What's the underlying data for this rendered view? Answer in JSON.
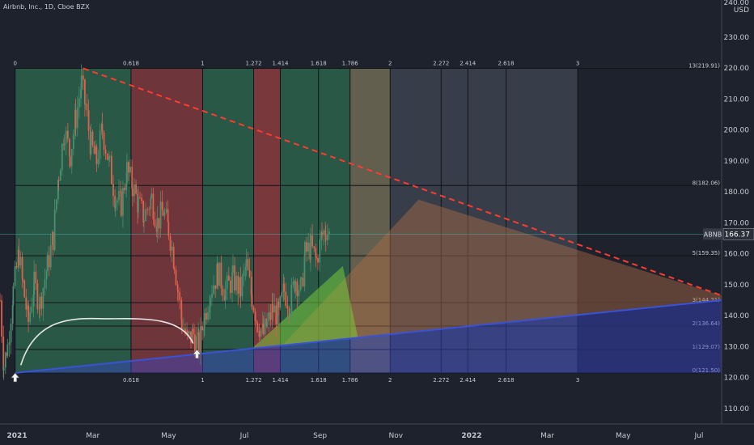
{
  "header": {
    "symbol_title": "Airbnb, Inc., 1D, Cboe BZX"
  },
  "price_axis": {
    "currency": "USD",
    "top_partial_label": "240.00"
  },
  "colors": {
    "background": "#1e222d",
    "grid": "#363a45",
    "up_candle": "#4a8f6f",
    "down_candle": "#e0604c",
    "fib_green": "#2d6b4f",
    "fib_red": "#8a3c3f",
    "fib_gray": "#4e5560",
    "trendline_red": "#ff3b30",
    "trendline_blue": "#3a52d6",
    "last_price_badge": "#363a45"
  },
  "last_price": {
    "ticker": "ABNB",
    "value": "166.37",
    "price": 166.37
  },
  "chart_data": {
    "type": "candlestick",
    "instrument": "Airbnb, Inc.",
    "interval": "1D",
    "exchange": "Cboe BZX",
    "ylim": [
      105,
      242
    ],
    "price_ticks": [
      "110.00",
      "120.00",
      "130.00",
      "140.00",
      "150.00",
      "160.00",
      "170.00",
      "180.00",
      "190.00",
      "200.00",
      "210.00",
      "220.00",
      "230.00"
    ],
    "price_tick_values": [
      110,
      120,
      130,
      140,
      150,
      160,
      170,
      180,
      190,
      200,
      210,
      220,
      230
    ],
    "time_labels": [
      "2021",
      "Mar",
      "May",
      "Jul",
      "Sep",
      "Nov",
      "2022",
      "Mar",
      "May",
      "Jul"
    ],
    "time_label_months": [
      0,
      2,
      4,
      6,
      8,
      10,
      12,
      14,
      16,
      18
    ],
    "x_start_month": -0.45,
    "x_end_month": 18.6,
    "fib_time_zones": {
      "levels_top": [
        "0",
        "0.618",
        "1",
        "1.272",
        "1.414",
        "1.618",
        "1.786",
        "2",
        "2.272",
        "2.414",
        "2.618",
        "3"
      ],
      "levels_bottom": [
        "0.618",
        "1",
        "1.272",
        "1.414",
        "1.618",
        "1.786",
        "2",
        "2.272",
        "2.414",
        "2.618",
        "3"
      ],
      "level_values": [
        0,
        0.618,
        1,
        1.272,
        1.414,
        1.618,
        1.786,
        2,
        2.272,
        2.414,
        2.618,
        3
      ],
      "zone_start_month": -0.05,
      "zone_unit_months": 4.95
    },
    "fib_price_levels": [
      {
        "label": "13(219.91)",
        "price": 219.91
      },
      {
        "label": "8(182.06)",
        "price": 182.06
      },
      {
        "label": "5(159.35)",
        "price": 159.35
      },
      {
        "label": "3(144.21)",
        "price": 144.21
      },
      {
        "label": "2(136.64)",
        "price": 136.64
      },
      {
        "label": "1(129.07)",
        "price": 129.07
      },
      {
        "label": "0(121.50)",
        "price": 121.5
      }
    ],
    "trendlines": [
      {
        "name": "resistance",
        "from": [
          1.75,
          219.9
        ],
        "to": [
          18.6,
          146.5
        ],
        "style": "dashed",
        "color": "#ff3b30"
      },
      {
        "name": "support",
        "from": [
          -0.05,
          121.5
        ],
        "to": [
          18.6,
          145.0
        ],
        "style": "solid",
        "color": "#3a52d6"
      }
    ],
    "ohlc_close_path": [
      [
        -0.45,
        145
      ],
      [
        -0.35,
        124
      ],
      [
        -0.25,
        130
      ],
      [
        -0.1,
        148
      ],
      [
        0.05,
        160
      ],
      [
        0.15,
        150
      ],
      [
        0.3,
        138
      ],
      [
        0.45,
        150
      ],
      [
        0.6,
        144
      ],
      [
        0.8,
        156
      ],
      [
        0.95,
        165
      ],
      [
        1.1,
        186
      ],
      [
        1.25,
        200
      ],
      [
        1.4,
        192
      ],
      [
        1.55,
        204
      ],
      [
        1.7,
        215
      ],
      [
        1.8,
        208
      ],
      [
        1.95,
        195
      ],
      [
        2.1,
        190
      ],
      [
        2.25,
        200
      ],
      [
        2.45,
        188
      ],
      [
        2.6,
        178
      ],
      [
        2.75,
        176
      ],
      [
        2.9,
        187
      ],
      [
        3.05,
        182
      ],
      [
        3.2,
        176
      ],
      [
        3.35,
        172
      ],
      [
        3.55,
        178
      ],
      [
        3.7,
        170
      ],
      [
        3.85,
        174
      ],
      [
        4.0,
        168
      ],
      [
        4.15,
        158
      ],
      [
        4.25,
        148
      ],
      [
        4.35,
        138
      ],
      [
        4.5,
        132
      ],
      [
        4.65,
        134
      ],
      [
        4.8,
        130
      ],
      [
        4.95,
        140
      ],
      [
        5.1,
        148
      ],
      [
        5.3,
        154
      ],
      [
        5.5,
        148
      ],
      [
        5.7,
        152
      ],
      [
        5.9,
        148
      ],
      [
        6.05,
        156
      ],
      [
        6.2,
        146
      ],
      [
        6.35,
        138
      ],
      [
        6.5,
        134
      ],
      [
        6.6,
        137
      ],
      [
        6.75,
        142
      ],
      [
        6.9,
        140
      ],
      [
        7.05,
        148
      ],
      [
        7.2,
        144
      ],
      [
        7.35,
        152
      ],
      [
        7.5,
        148
      ],
      [
        7.6,
        160
      ],
      [
        7.75,
        162
      ],
      [
        7.9,
        158
      ],
      [
        8.05,
        166
      ],
      [
        8.15,
        168
      ],
      [
        8.25,
        166
      ]
    ],
    "annotations": [
      {
        "type": "arc",
        "from": [
          0.1,
          124
        ],
        "to": [
          4.65,
          131
        ],
        "peak_price": 139
      },
      {
        "type": "arrow-up",
        "at": [
          -0.05,
          121.5
        ]
      },
      {
        "type": "arrow-up",
        "at": [
          4.75,
          129.07
        ]
      }
    ]
  }
}
